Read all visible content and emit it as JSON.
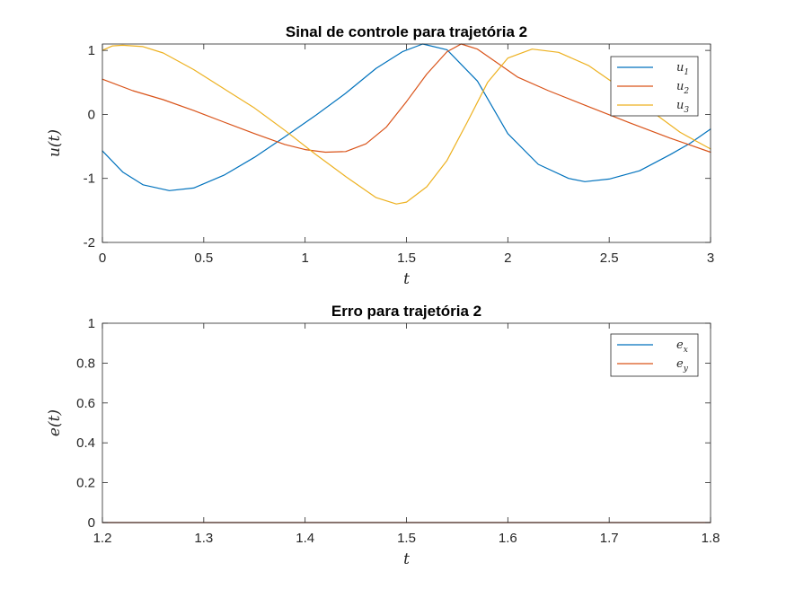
{
  "chart_data": [
    {
      "type": "line",
      "title": "Sinal de controle para trajetória 2",
      "xlabel": "t",
      "ylabel": "u(t)",
      "xlim": [
        0,
        3
      ],
      "ylim": [
        -2,
        1.1
      ],
      "xticks": [
        0,
        0.5,
        1,
        1.5,
        2,
        2.5,
        3
      ],
      "xtick_labels": [
        "0",
        "0.5",
        "1",
        "1.5",
        "2",
        "2.5",
        "3"
      ],
      "yticks": [
        -2,
        -1,
        0,
        1
      ],
      "ytick_labels": [
        "-2",
        "-1",
        "0",
        "1"
      ],
      "grid": false,
      "legend_position": "top-right",
      "series": [
        {
          "name": "u1",
          "name_base": "u",
          "name_sub": "1",
          "color": "#0072BD",
          "x": [
            0,
            0.1,
            0.2,
            0.33,
            0.45,
            0.6,
            0.75,
            0.9,
            1.05,
            1.2,
            1.35,
            1.48,
            1.58,
            1.7,
            1.85,
            2.0,
            2.15,
            2.3,
            2.38,
            2.5,
            2.65,
            2.8,
            2.9,
            3.0
          ],
          "y": [
            -0.57,
            -0.9,
            -1.1,
            -1.19,
            -1.15,
            -0.95,
            -0.67,
            -0.35,
            -0.02,
            0.33,
            0.72,
            0.98,
            1.1,
            1.01,
            0.52,
            -0.3,
            -0.78,
            -1.0,
            -1.05,
            -1.01,
            -0.88,
            -0.63,
            -0.45,
            -0.23
          ]
        },
        {
          "name": "u2",
          "name_base": "u",
          "name_sub": "2",
          "color": "#D95319",
          "x": [
            0,
            0.15,
            0.3,
            0.45,
            0.6,
            0.75,
            0.9,
            1.0,
            1.1,
            1.2,
            1.3,
            1.4,
            1.5,
            1.6,
            1.7,
            1.77,
            1.85,
            1.95,
            2.05,
            2.2,
            2.4,
            2.6,
            2.8,
            3.0
          ],
          "y": [
            0.55,
            0.37,
            0.23,
            0.06,
            -0.12,
            -0.3,
            -0.47,
            -0.55,
            -0.59,
            -0.58,
            -0.46,
            -0.2,
            0.2,
            0.63,
            0.98,
            1.1,
            1.02,
            0.8,
            0.58,
            0.37,
            0.12,
            -0.13,
            -0.37,
            -0.59
          ]
        },
        {
          "name": "u3",
          "name_base": "u",
          "name_sub": "3",
          "color": "#EDB120",
          "x": [
            0,
            0.05,
            0.1,
            0.2,
            0.3,
            0.45,
            0.6,
            0.75,
            0.9,
            1.05,
            1.2,
            1.35,
            1.45,
            1.5,
            1.6,
            1.7,
            1.8,
            1.9,
            2.0,
            2.12,
            2.25,
            2.4,
            2.55,
            2.7,
            2.85,
            3.0
          ],
          "y": [
            1.0,
            1.07,
            1.08,
            1.06,
            0.96,
            0.7,
            0.4,
            0.1,
            -0.25,
            -0.62,
            -0.97,
            -1.3,
            -1.4,
            -1.37,
            -1.13,
            -0.72,
            -0.12,
            0.5,
            0.88,
            1.02,
            0.97,
            0.76,
            0.43,
            0.07,
            -0.28,
            -0.54
          ]
        }
      ]
    },
    {
      "type": "line",
      "title": "Erro para trajetória 2",
      "xlabel": "t",
      "ylabel": "e(t)",
      "xlim": [
        1.2,
        1.8
      ],
      "ylim": [
        0,
        1
      ],
      "xticks": [
        1.2,
        1.3,
        1.4,
        1.5,
        1.6,
        1.7,
        1.8
      ],
      "xtick_labels": [
        "1.2",
        "1.3",
        "1.4",
        "1.5",
        "1.6",
        "1.7",
        "1.8"
      ],
      "yticks": [
        0,
        0.2,
        0.4,
        0.6,
        0.8,
        1
      ],
      "ytick_labels": [
        "0",
        "0.2",
        "0.4",
        "0.6",
        "0.8",
        "1"
      ],
      "grid": false,
      "legend_position": "top-right",
      "series": [
        {
          "name": "ex",
          "name_base": "e",
          "name_sub": "x",
          "color": "#0072BD",
          "x": [
            1.2,
            1.8
          ],
          "y": [
            0,
            0
          ]
        },
        {
          "name": "ey",
          "name_base": "e",
          "name_sub": "y",
          "color": "#D95319",
          "x": [
            1.2,
            1.8
          ],
          "y": [
            0,
            0
          ]
        }
      ]
    }
  ]
}
